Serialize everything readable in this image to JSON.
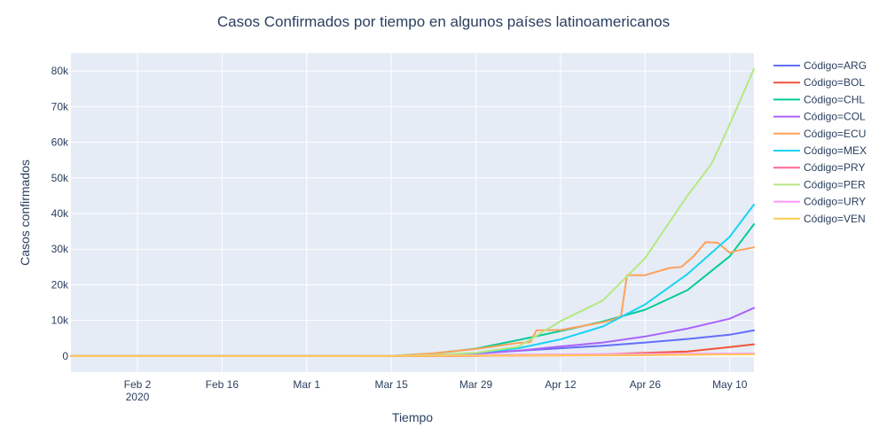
{
  "chart_data": {
    "type": "line",
    "title": "Casos Confirmados por tiempo en algunos países latinoamericanos",
    "xlabel": "Tiempo",
    "ylabel": "Casos confirmados",
    "x_start": "2020-01-22",
    "x_range": [
      "2020-01-22",
      "2020-05-14"
    ],
    "x_ticks": [
      {
        "date": "2020-02-02",
        "label": "Feb 2",
        "sub": "2020"
      },
      {
        "date": "2020-02-16",
        "label": "Feb 16",
        "sub": ""
      },
      {
        "date": "2020-03-01",
        "label": "Mar 1",
        "sub": ""
      },
      {
        "date": "2020-03-15",
        "label": "Mar 15",
        "sub": ""
      },
      {
        "date": "2020-03-29",
        "label": "Mar 29",
        "sub": ""
      },
      {
        "date": "2020-04-12",
        "label": "Apr 12",
        "sub": ""
      },
      {
        "date": "2020-04-26",
        "label": "Apr 26",
        "sub": ""
      },
      {
        "date": "2020-05-10",
        "label": "May 10",
        "sub": ""
      }
    ],
    "ylim": [
      -4500,
      85000
    ],
    "y_ticks": [
      {
        "value": 0,
        "label": "0"
      },
      {
        "value": 10000,
        "label": "10k"
      },
      {
        "value": 20000,
        "label": "20k"
      },
      {
        "value": 30000,
        "label": "30k"
      },
      {
        "value": 40000,
        "label": "40k"
      },
      {
        "value": 50000,
        "label": "50k"
      },
      {
        "value": 60000,
        "label": "60k"
      },
      {
        "value": 70000,
        "label": "70k"
      },
      {
        "value": 80000,
        "label": "80k"
      }
    ],
    "grid": true,
    "legend_position": "right",
    "series": [
      {
        "name": "Código=ARG",
        "color": "#636efa",
        "points": [
          [
            "2020-01-22",
            0
          ],
          [
            "2020-03-03",
            0
          ],
          [
            "2020-03-15",
            50
          ],
          [
            "2020-03-22",
            250
          ],
          [
            "2020-03-29",
            800
          ],
          [
            "2020-04-05",
            1500
          ],
          [
            "2020-04-12",
            2200
          ],
          [
            "2020-04-19",
            2900
          ],
          [
            "2020-04-26",
            3800
          ],
          [
            "2020-05-03",
            4800
          ],
          [
            "2020-05-10",
            6000
          ],
          [
            "2020-05-14",
            7200
          ]
        ]
      },
      {
        "name": "Código=BOL",
        "color": "#ef553b",
        "points": [
          [
            "2020-01-22",
            0
          ],
          [
            "2020-03-10",
            0
          ],
          [
            "2020-03-25",
            50
          ],
          [
            "2020-04-05",
            150
          ],
          [
            "2020-04-12",
            300
          ],
          [
            "2020-04-19",
            500
          ],
          [
            "2020-04-26",
            900
          ],
          [
            "2020-05-03",
            1300
          ],
          [
            "2020-05-10",
            2500
          ],
          [
            "2020-05-14",
            3300
          ]
        ]
      },
      {
        "name": "Código=CHL",
        "color": "#00cc96",
        "points": [
          [
            "2020-01-22",
            0
          ],
          [
            "2020-03-03",
            0
          ],
          [
            "2020-03-15",
            75
          ],
          [
            "2020-03-22",
            750
          ],
          [
            "2020-03-29",
            2100
          ],
          [
            "2020-04-05",
            4500
          ],
          [
            "2020-04-12",
            7000
          ],
          [
            "2020-04-19",
            9700
          ],
          [
            "2020-04-26",
            13000
          ],
          [
            "2020-05-03",
            18500
          ],
          [
            "2020-05-10",
            28000
          ],
          [
            "2020-05-14",
            37000
          ]
        ]
      },
      {
        "name": "Código=COL",
        "color": "#ab63fa",
        "points": [
          [
            "2020-01-22",
            0
          ],
          [
            "2020-03-06",
            0
          ],
          [
            "2020-03-15",
            50
          ],
          [
            "2020-03-22",
            230
          ],
          [
            "2020-03-29",
            700
          ],
          [
            "2020-04-05",
            1500
          ],
          [
            "2020-04-12",
            2700
          ],
          [
            "2020-04-19",
            3800
          ],
          [
            "2020-04-26",
            5500
          ],
          [
            "2020-05-03",
            7700
          ],
          [
            "2020-05-10",
            10500
          ],
          [
            "2020-05-14",
            13500
          ]
        ]
      },
      {
        "name": "Código=ECU",
        "color": "#ffa15a",
        "points": [
          [
            "2020-01-22",
            0
          ],
          [
            "2020-02-29",
            0
          ],
          [
            "2020-03-15",
            40
          ],
          [
            "2020-03-22",
            800
          ],
          [
            "2020-03-29",
            2000
          ],
          [
            "2020-04-05",
            3700
          ],
          [
            "2020-04-06",
            3800
          ],
          [
            "2020-04-07",
            3900
          ],
          [
            "2020-04-08",
            7200
          ],
          [
            "2020-04-12",
            7300
          ],
          [
            "2020-04-19",
            9500
          ],
          [
            "2020-04-21",
            10400
          ],
          [
            "2020-04-22",
            11200
          ],
          [
            "2020-04-23",
            22700
          ],
          [
            "2020-04-26",
            22700
          ],
          [
            "2020-04-30",
            24700
          ],
          [
            "2020-05-02",
            25000
          ],
          [
            "2020-05-04",
            28000
          ],
          [
            "2020-05-06",
            32000
          ],
          [
            "2020-05-08",
            31800
          ],
          [
            "2020-05-10",
            29000
          ],
          [
            "2020-05-11",
            29500
          ],
          [
            "2020-05-14",
            30500
          ]
        ]
      },
      {
        "name": "Código=MEX",
        "color": "#19d3f3",
        "points": [
          [
            "2020-01-22",
            0
          ],
          [
            "2020-02-28",
            0
          ],
          [
            "2020-03-15",
            40
          ],
          [
            "2020-03-22",
            300
          ],
          [
            "2020-03-29",
            900
          ],
          [
            "2020-04-05",
            2200
          ],
          [
            "2020-04-12",
            4700
          ],
          [
            "2020-04-19",
            8300
          ],
          [
            "2020-04-26",
            14500
          ],
          [
            "2020-05-03",
            23000
          ],
          [
            "2020-05-10",
            33500
          ],
          [
            "2020-05-14",
            42500
          ]
        ]
      },
      {
        "name": "Código=PRY",
        "color": "#ff6692",
        "points": [
          [
            "2020-01-22",
            0
          ],
          [
            "2020-03-10",
            0
          ],
          [
            "2020-03-25",
            50
          ],
          [
            "2020-04-12",
            150
          ],
          [
            "2020-04-26",
            250
          ],
          [
            "2020-05-14",
            600
          ]
        ]
      },
      {
        "name": "Código=PER",
        "color": "#b6e880",
        "points": [
          [
            "2020-01-22",
            0
          ],
          [
            "2020-03-06",
            0
          ],
          [
            "2020-03-15",
            70
          ],
          [
            "2020-03-22",
            360
          ],
          [
            "2020-03-29",
            950
          ],
          [
            "2020-04-05",
            2600
          ],
          [
            "2020-04-12",
            9800
          ],
          [
            "2020-04-19",
            15600
          ],
          [
            "2020-04-26",
            27500
          ],
          [
            "2020-05-03",
            45000
          ],
          [
            "2020-05-07",
            54000
          ],
          [
            "2020-05-10",
            65000
          ],
          [
            "2020-05-14",
            80600
          ]
        ]
      },
      {
        "name": "Código=URY",
        "color": "#ff97ff",
        "points": [
          [
            "2020-01-22",
            0
          ],
          [
            "2020-03-12",
            0
          ],
          [
            "2020-03-22",
            130
          ],
          [
            "2020-04-05",
            400
          ],
          [
            "2020-04-26",
            620
          ],
          [
            "2020-05-14",
            720
          ]
        ]
      },
      {
        "name": "Código=VEN",
        "color": "#fecb52",
        "points": [
          [
            "2020-01-22",
            0
          ],
          [
            "2020-03-12",
            0
          ],
          [
            "2020-03-22",
            70
          ],
          [
            "2020-04-05",
            160
          ],
          [
            "2020-04-26",
            330
          ],
          [
            "2020-05-14",
            470
          ]
        ]
      }
    ]
  }
}
